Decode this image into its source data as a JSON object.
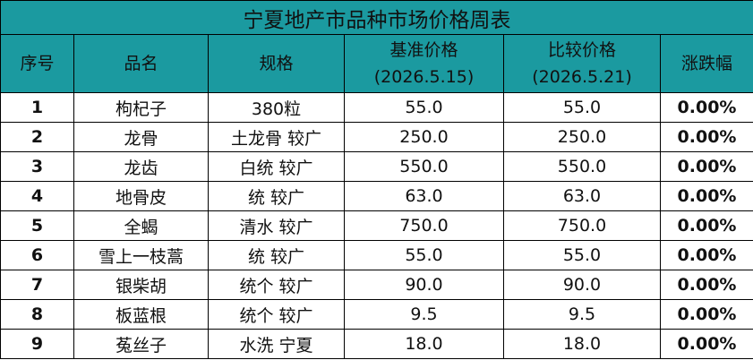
{
  "title": "宁夏地产市品种市场价格周表",
  "table": {
    "headers": [
      [
        "序号"
      ],
      [
        "品名"
      ],
      [
        "规格"
      ],
      [
        "基准价格",
        "(2026.5.15)"
      ],
      [
        "比较价格",
        "(2026.5.21)"
      ],
      [
        "涨跌幅"
      ]
    ],
    "rows": [
      [
        "1",
        "枸杞子",
        "380粒",
        "55.0",
        "55.0",
        "0.00%"
      ],
      [
        "2",
        "龙骨",
        "土龙骨 较广",
        "250.0",
        "250.0",
        "0.00%"
      ],
      [
        "3",
        "龙齿",
        "白统 较广",
        "550.0",
        "550.0",
        "0.00%"
      ],
      [
        "4",
        "地骨皮",
        "统 较广",
        "63.0",
        "63.0",
        "0.00%"
      ],
      [
        "5",
        "全蝎",
        "清水 较广",
        "750.0",
        "750.0",
        "0.00%"
      ],
      [
        "6",
        "雪上一枝蒿",
        "统 较广",
        "55.0",
        "55.0",
        "0.00%"
      ],
      [
        "7",
        "银柴胡",
        "统个 较广",
        "90.0",
        "90.0",
        "0.00%"
      ],
      [
        "8",
        "板蓝根",
        "统个 较广",
        "9.5",
        "9.5",
        "0.00%"
      ],
      [
        "9",
        "菟丝子",
        "水洗 宁夏",
        "18.0",
        "18.0",
        "0.00%"
      ]
    ]
  }
}
